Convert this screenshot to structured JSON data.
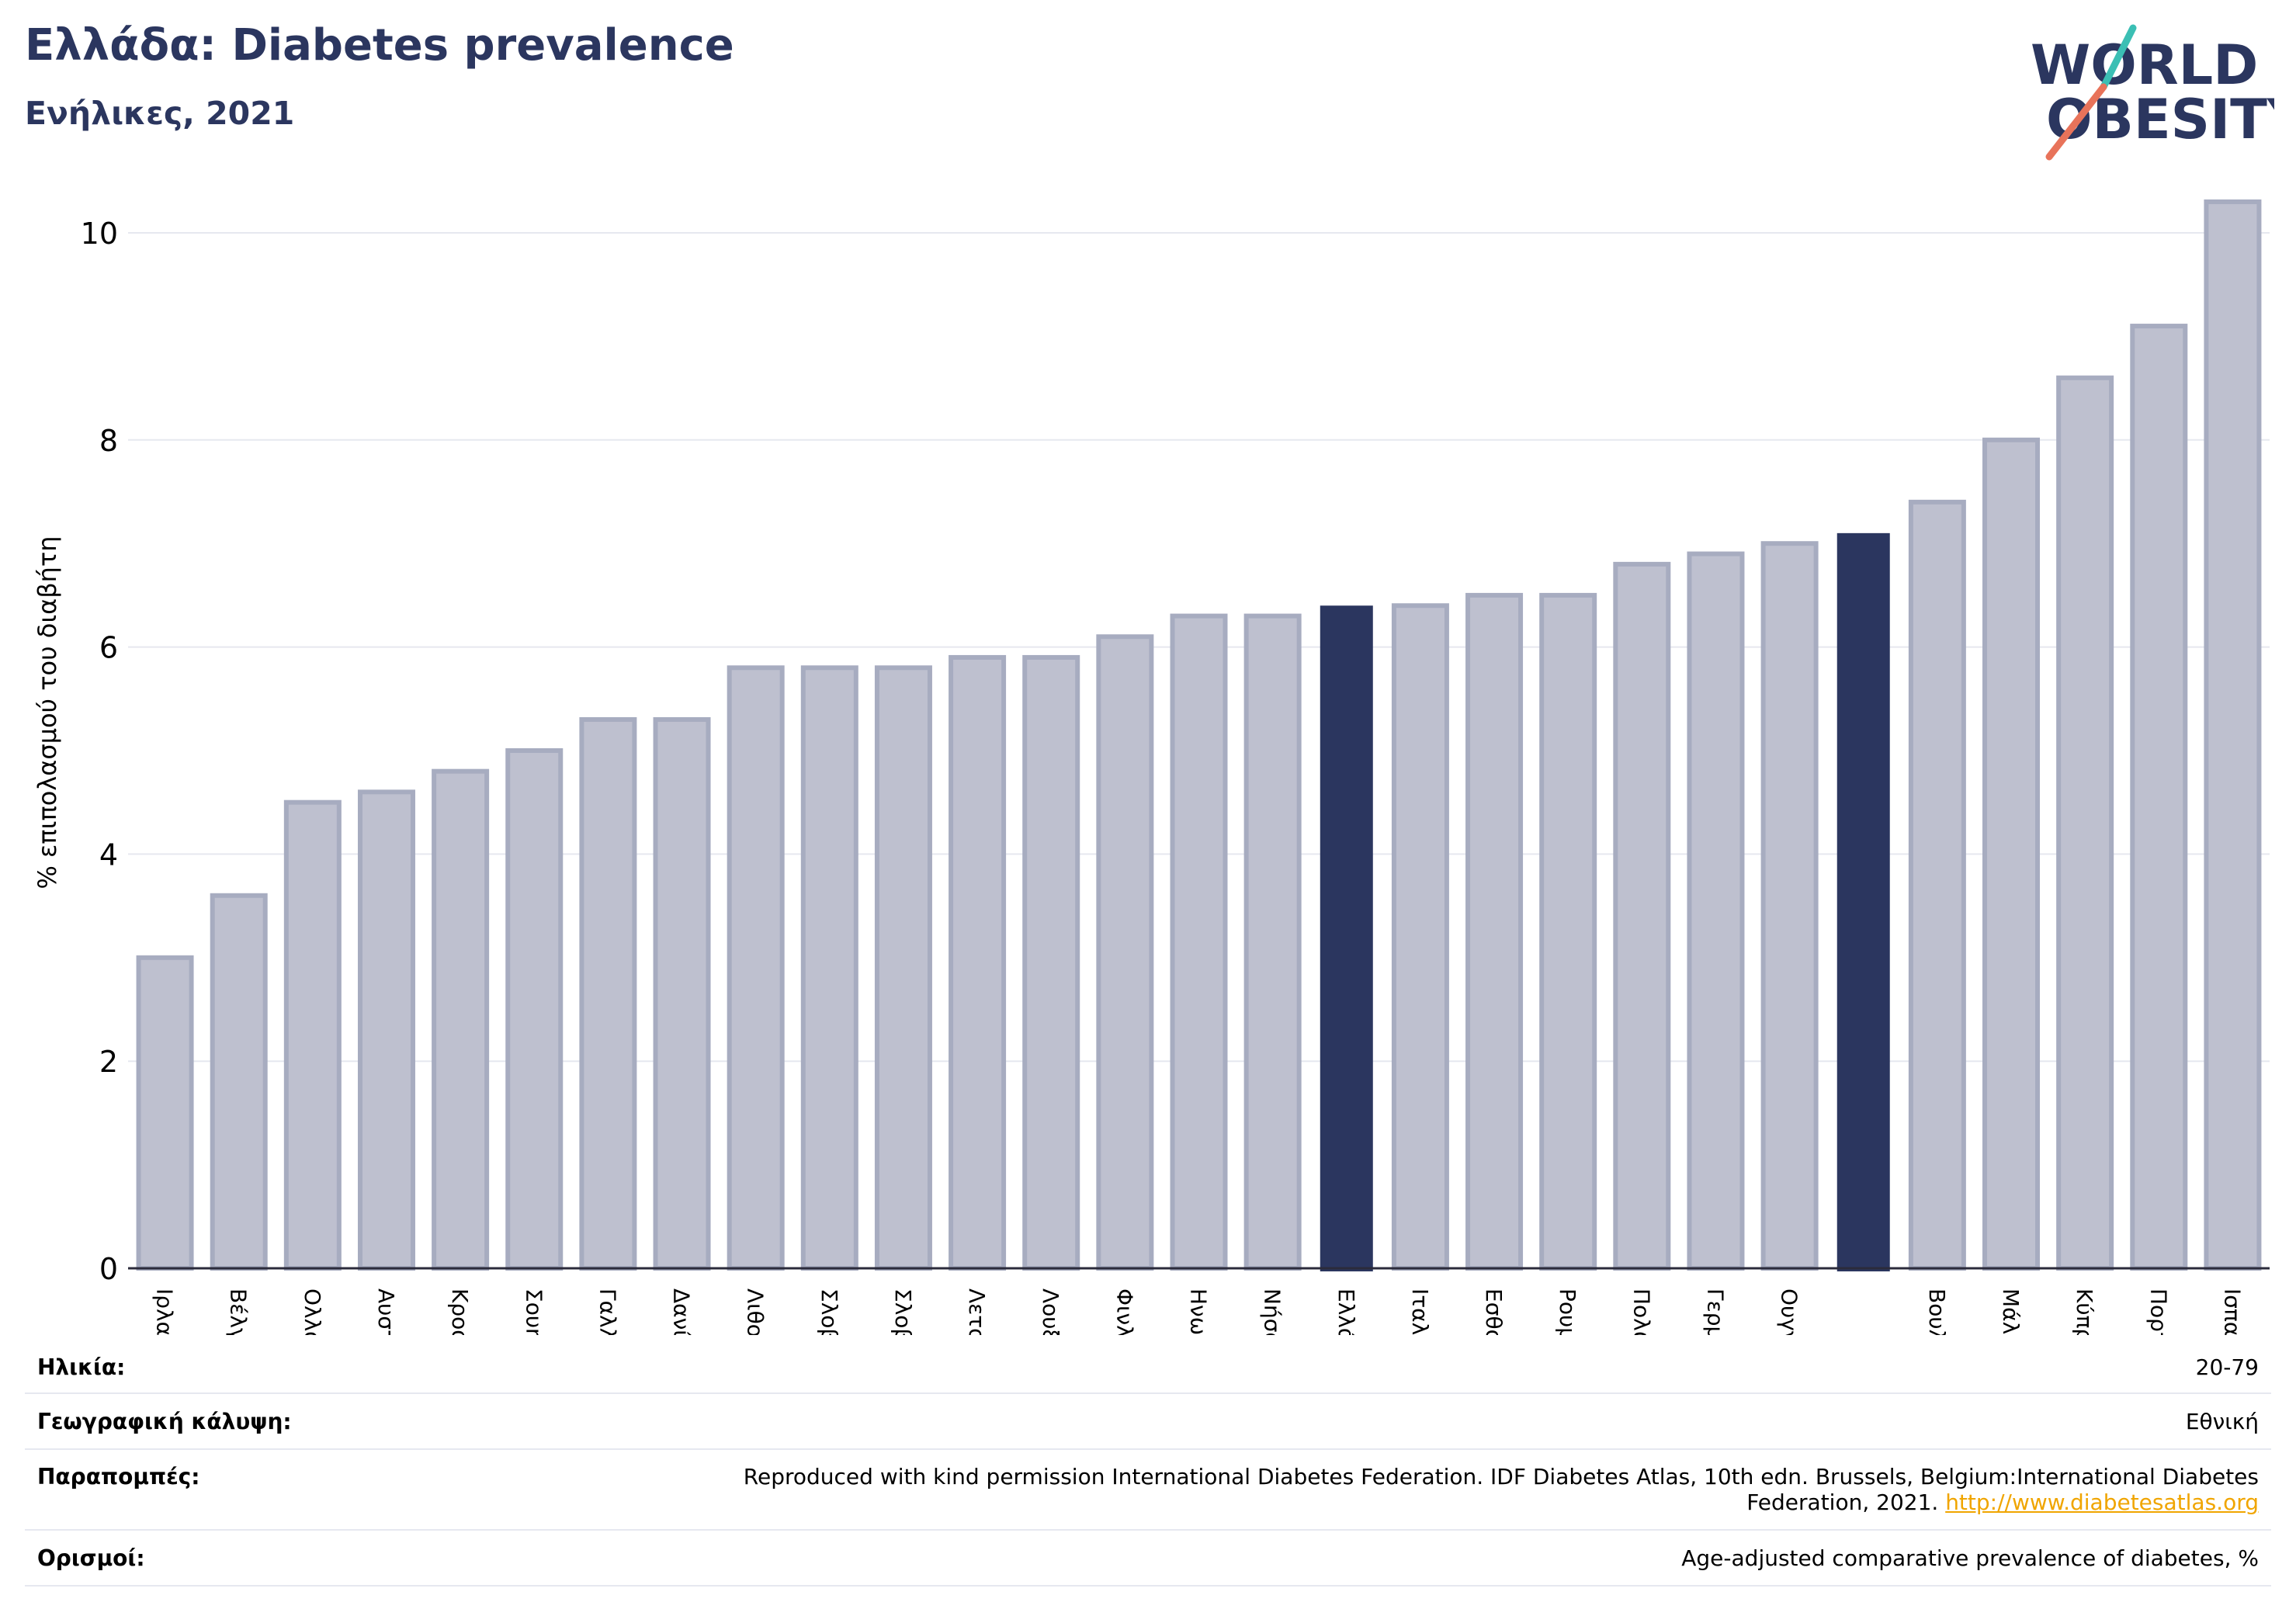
{
  "header": {
    "title": "Ελλάδα: Diabetes prevalence",
    "subtitle": "Ενήλικες, 2021"
  },
  "logo": {
    "line1": "WORLD",
    "line2": "OBESITY",
    "colors": {
      "text": "#2b365f",
      "slash_top": "#3bbfb4",
      "slash_bottom": "#e8735a"
    }
  },
  "chart_data": {
    "type": "bar",
    "ylabel": "% επιπολασμού του διαβήτη",
    "ylim": [
      0,
      10.5
    ],
    "yticks": [
      0,
      2,
      4,
      6,
      8,
      10
    ],
    "grid": true,
    "colors": {
      "default": "#bec0cf",
      "default_edge": "#a7acc0",
      "highlight": "#2b365f"
    },
    "categories": [
      "Ιρλανδία",
      "Βέλγιο",
      "Ολλανδία",
      "Αυστρία",
      "Κροατία",
      "Σουηδία",
      "Γαλλία",
      "Δανία",
      "Λιθουανία",
      "Σλοβακία",
      "Σλοβενία",
      "Λετονία",
      "Λουξεμβούργο",
      "Φινλανδία",
      "Ηνωμένο Βασίλειο",
      "Νήσος Μαν",
      "Ελλάδα",
      "Ιταλία",
      "Εσθονία",
      "Ρουμανία",
      "Πολωνία",
      "Γερμανία",
      "Ουγγαρία",
      "",
      "Βουλγαρία",
      "Μάλτα",
      "Κύπρος",
      "Πορτογαλία",
      "Ισπανία"
    ],
    "values": [
      3.0,
      3.6,
      4.5,
      4.6,
      4.8,
      5.0,
      5.3,
      5.3,
      5.8,
      5.8,
      5.8,
      5.9,
      5.9,
      6.1,
      6.3,
      6.3,
      6.4,
      6.4,
      6.5,
      6.5,
      6.8,
      6.9,
      7.0,
      7.1,
      7.4,
      8.0,
      8.6,
      9.1,
      10.3
    ],
    "highlighted_indices": [
      16,
      23
    ]
  },
  "meta": {
    "age": {
      "label": "Ηλικία:",
      "value": "20-79"
    },
    "coverage": {
      "label": "Γεωγραφική κάλυψη:",
      "value": "Εθνική"
    },
    "references": {
      "label": "Παραπομπές:",
      "value_line1": "Reproduced with kind permission International Diabetes Federation.  IDF Diabetes Atlas, 10th edn. Brussels, Belgium:International Diabetes",
      "value_line2": "Federation, 2021. ",
      "link": "http://www.diabetesatlas.org"
    },
    "definitions": {
      "label": "Ορισμοί:",
      "value": "Age-adjusted comparative prevalence of diabetes, %"
    }
  }
}
